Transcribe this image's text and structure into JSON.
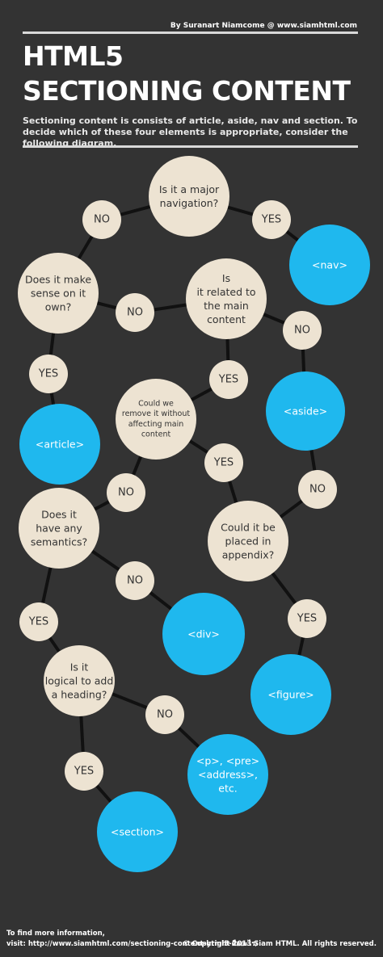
{
  "header": {
    "credit": "By Suranart Niamcome @ www.siamhtml.com",
    "title_line1": "HTML5",
    "title_line2": "SECTIONING CONTENT",
    "intro": "Sectioning content is consists of article, aside, nav and section. To decide which of these four elements is appropriate, consider the following diagram."
  },
  "colors": {
    "background": "#333333",
    "question_node": "#ede3d2",
    "answer_node": "#1fb8ee",
    "connector": "#111111"
  },
  "diagram": {
    "questions": {
      "major_navigation": [
        "Is it a major",
        "navigation?"
      ],
      "make_sense_own": [
        "Does it make",
        "sense on it",
        "own?"
      ],
      "related_main": [
        "Is",
        "it related to",
        "the main",
        "content"
      ],
      "remove_without": [
        "Could we",
        "remove it without",
        "affecting main",
        "content"
      ],
      "any_semantics": [
        "Does it",
        "have any",
        "semantics?"
      ],
      "placed_appendix": [
        "Could it be",
        "placed in",
        "appendix?"
      ],
      "logical_heading": [
        "Is it",
        "logical to add",
        "a heading?"
      ]
    },
    "edge_labels": {
      "yes": "YES",
      "no": "NO"
    },
    "answers": {
      "nav": [
        "<nav>"
      ],
      "article": [
        "<article>"
      ],
      "aside": [
        "<aside>"
      ],
      "div": [
        "<div>"
      ],
      "figure": [
        "<figure>"
      ],
      "p_pre": [
        "<p>, <pre>",
        "<address>,",
        "etc."
      ],
      "section": [
        "<section>"
      ]
    }
  },
  "footer": {
    "more_info_line1": "To find more information,",
    "more_info_line2": "visit: http://www.siamhtml.com/sectioning-content-html5-คืออะไร/",
    "copyright": "© Copyright 2013 Siam HTML. All rights reserved."
  }
}
